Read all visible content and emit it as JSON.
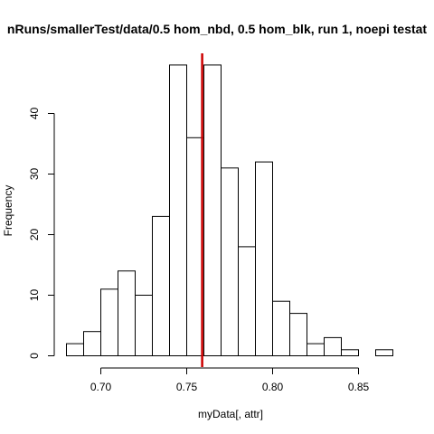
{
  "chart_data": {
    "type": "bar",
    "subtype": "histogram",
    "title": "nRuns/smallerTest/data/0.5 hom_nbd, 0.5 hom_blk, run 1, noepi testat",
    "xlabel": "myData[, attr]",
    "ylabel": "Frequency",
    "bin_width": 0.01,
    "bin_edges": [
      0.68,
      0.69,
      0.7,
      0.71,
      0.72,
      0.73,
      0.74,
      0.75,
      0.76,
      0.77,
      0.78,
      0.79,
      0.8,
      0.81,
      0.82,
      0.83,
      0.84,
      0.85,
      0.86,
      0.87
    ],
    "values": [
      2,
      4,
      11,
      14,
      10,
      23,
      48,
      36,
      48,
      31,
      18,
      32,
      9,
      7,
      2,
      3,
      1,
      0,
      1
    ],
    "xlim": [
      0.68,
      0.87
    ],
    "ylim": [
      0,
      48
    ],
    "x_ticks": [
      0.7,
      0.75,
      0.8,
      0.85
    ],
    "x_tick_labels": [
      "0.70",
      "0.75",
      "0.80",
      "0.85"
    ],
    "y_ticks": [
      0,
      10,
      20,
      30,
      40
    ],
    "y_tick_labels": [
      "0",
      "10",
      "20",
      "30",
      "40"
    ],
    "reference_line": {
      "x": 0.759,
      "color": "#cc0000"
    },
    "bar_fill": "#ffffff",
    "bar_stroke": "#000000",
    "grid": false,
    "legend": "none"
  }
}
